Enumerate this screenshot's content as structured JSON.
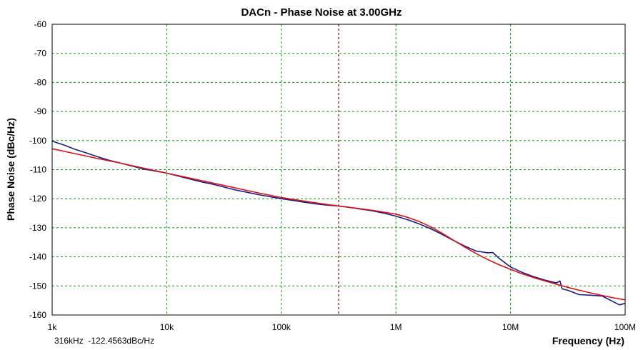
{
  "chart_data": {
    "type": "line",
    "title": "DACn - Phase Noise at 3.00GHz",
    "xlabel": "Frequency (Hz)",
    "ylabel": "Phase Noise (dBc/Hz)",
    "x_scale": "log",
    "xlim": [
      1000,
      100000000
    ],
    "ylim": [
      -160,
      -60
    ],
    "x_ticks": [
      1000,
      10000,
      100000,
      1000000,
      10000000,
      100000000
    ],
    "x_tick_labels": [
      "1k",
      "10k",
      "100k",
      "1M",
      "10M",
      "100M"
    ],
    "y_ticks": [
      -60,
      -70,
      -80,
      -90,
      -100,
      -110,
      -120,
      -130,
      -140,
      -150,
      -160
    ],
    "y_tick_labels": [
      "-60",
      "-70",
      "-80",
      "-90",
      "-100",
      "-110",
      "-120",
      "-130",
      "-140",
      "-150",
      "-160"
    ],
    "grid": true,
    "colors": {
      "grid": "#00a000",
      "marker": "#990000",
      "measured": "#1a1a8c",
      "model": "#e01010"
    },
    "marker": {
      "x": 316000,
      "readout": "316kHz  -122.4563dBc/Hz"
    },
    "series": [
      {
        "key": "measured",
        "x": [
          1000,
          1260,
          1580,
          2000,
          2510,
          3160,
          3980,
          5010,
          6310,
          7940,
          10000,
          12600,
          15800,
          20000,
          25100,
          31600,
          39800,
          50100,
          63100,
          79400,
          100000,
          126000,
          158000,
          200000,
          251000,
          316000,
          398000,
          501000,
          631000,
          794000,
          1000000,
          1260000,
          1580000,
          2000000,
          2510000,
          3160000,
          3980000,
          5010000,
          6310000,
          7000000,
          7940000,
          10000000,
          12600000,
          15800000,
          20000000,
          25100000,
          27000000,
          28200000,
          31600000,
          39800000,
          50100000,
          63100000,
          79400000,
          89100000,
          100000000
        ],
        "y": [
          -100.2,
          -101.5,
          -103.0,
          -104.3,
          -105.6,
          -106.8,
          -107.8,
          -108.8,
          -109.8,
          -110.5,
          -111.2,
          -112.2,
          -113.2,
          -114.2,
          -115.0,
          -116.0,
          -117.0,
          -117.8,
          -118.6,
          -119.3,
          -120.0,
          -120.6,
          -121.2,
          -121.8,
          -122.2,
          -122.5,
          -123.0,
          -123.6,
          -124.2,
          -125.0,
          -126.0,
          -127.2,
          -128.6,
          -130.3,
          -132.2,
          -134.3,
          -136.3,
          -138.0,
          -138.6,
          -138.5,
          -140.5,
          -143.5,
          -145.3,
          -146.8,
          -148.0,
          -149.0,
          -148.3,
          -151.0,
          -151.5,
          -153.0,
          -153.2,
          -153.5,
          -155.5,
          -156.5,
          -156.0
        ]
      },
      {
        "key": "model",
        "x": [
          1000,
          1580,
          2510,
          3980,
          6310,
          10000,
          15800,
          25100,
          39800,
          63100,
          100000,
          158000,
          251000,
          398000,
          631000,
          1000000,
          1260000,
          1580000,
          2000000,
          2510000,
          3160000,
          3980000,
          5010000,
          6310000,
          7940000,
          10000000,
          12600000,
          15800000,
          20000000,
          25100000,
          31600000,
          39800000,
          50100000,
          63100000,
          79400000,
          100000000
        ],
        "y": [
          -102.8,
          -104.5,
          -106.2,
          -107.8,
          -109.5,
          -111.2,
          -112.9,
          -114.6,
          -116.3,
          -118.0,
          -119.6,
          -120.8,
          -122.0,
          -123.0,
          -124.0,
          -125.3,
          -126.4,
          -127.8,
          -129.6,
          -131.8,
          -134.2,
          -136.6,
          -138.9,
          -140.9,
          -142.7,
          -144.3,
          -145.8,
          -147.1,
          -148.3,
          -149.4,
          -150.5,
          -151.5,
          -152.4,
          -153.3,
          -154.1,
          -154.8
        ]
      }
    ]
  }
}
